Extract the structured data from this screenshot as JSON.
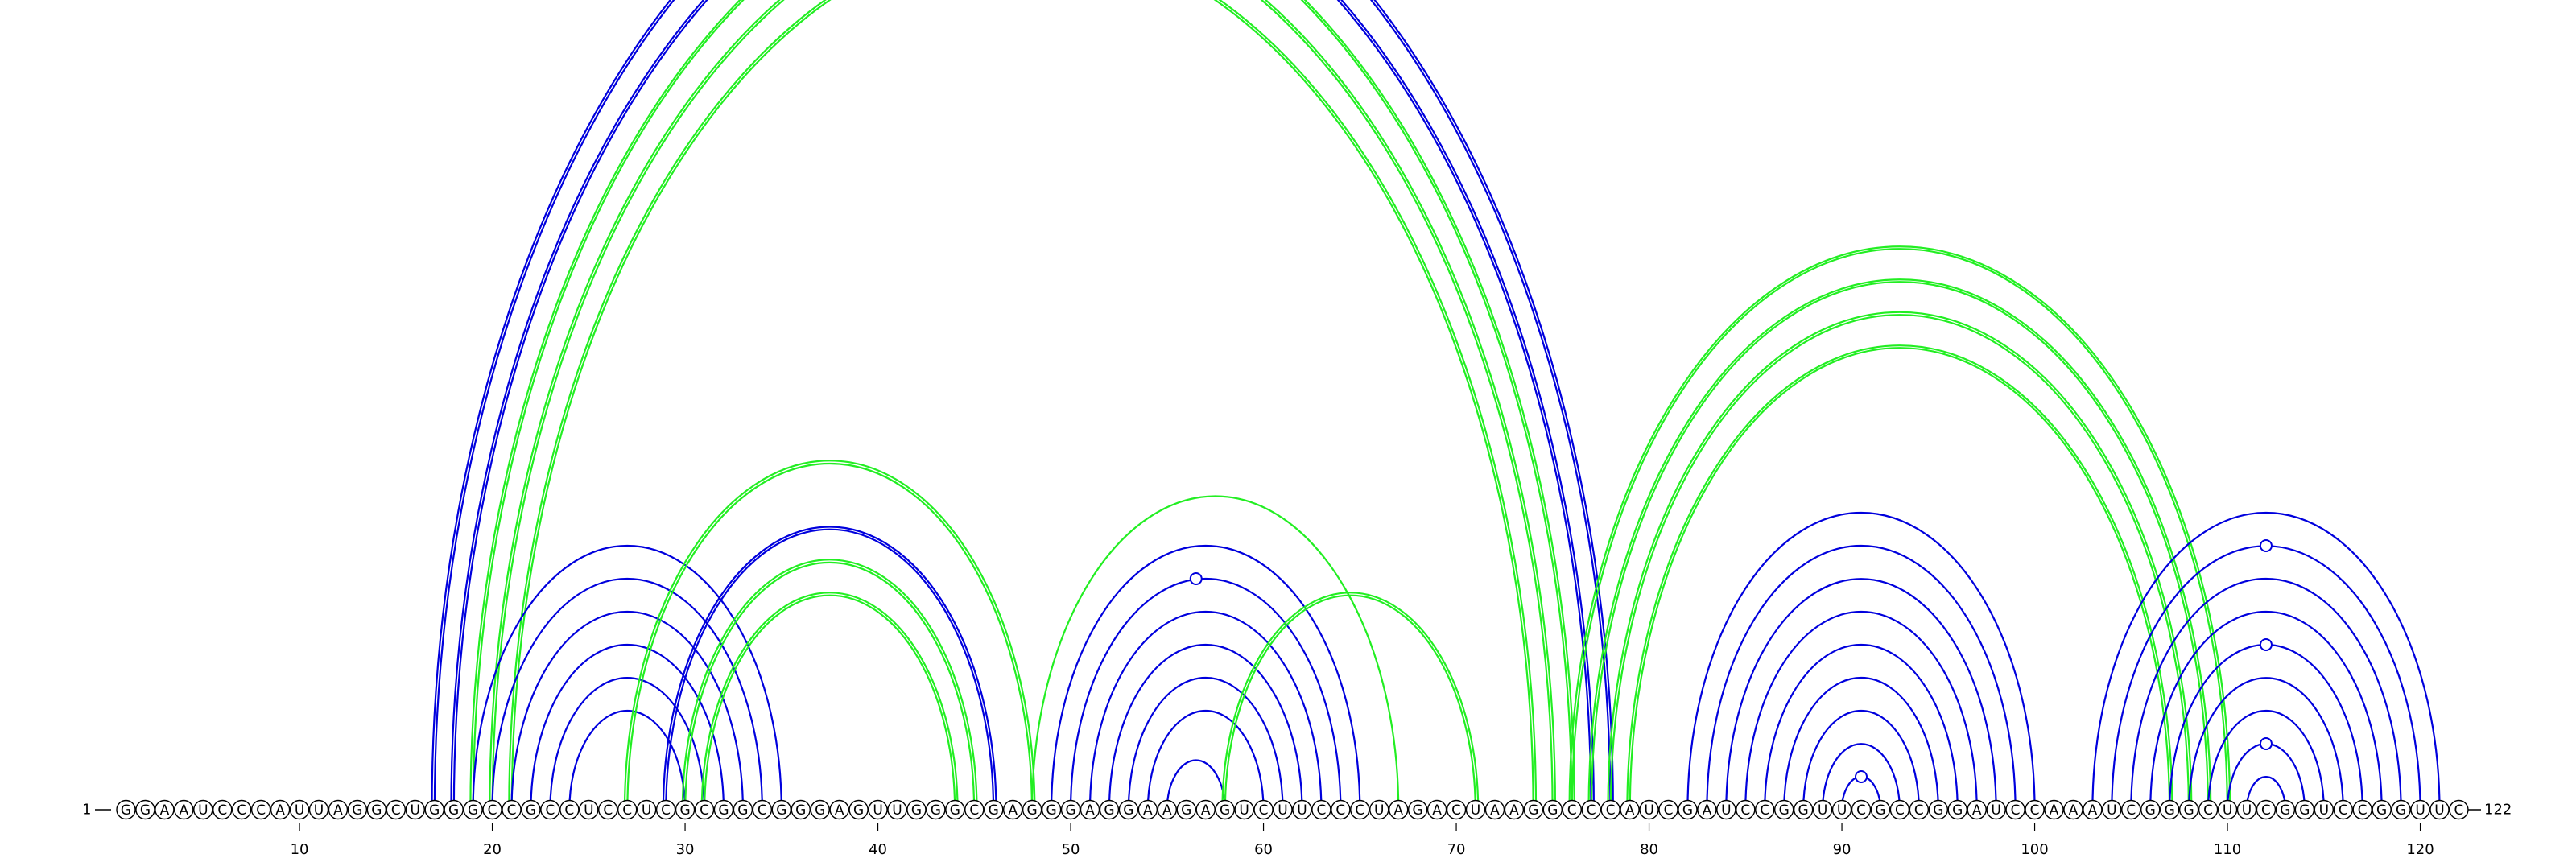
{
  "sequence": "GGAAUCCCAUUAGGCUGGGCCGCCUCCUCGCGGCGGGAGUUGGGCGAGGGAGGAAGAGUCUUCCCUAGACUAAGGCCCAUCGAUCCGGUUCGCCGGAUCCAAAUCGGGCUUCGGUCCGGUUC",
  "start_label": "1",
  "end_label": "122",
  "tick_labels": [
    "10",
    "20",
    "30",
    "40",
    "50",
    "60",
    "70",
    "80",
    "90",
    "100",
    "110",
    "120"
  ],
  "colors": {
    "blue": "#0000dd",
    "green": "#22ee22"
  },
  "chart_data": {
    "type": "arc-diagram",
    "sequence_length": 122,
    "ticks": [
      10,
      20,
      30,
      40,
      50,
      60,
      70,
      80,
      90,
      100,
      110,
      120
    ],
    "pairs": [
      {
        "i": 17,
        "j": 78,
        "color": "blue",
        "style": "double"
      },
      {
        "i": 18,
        "j": 77,
        "color": "blue",
        "style": "double"
      },
      {
        "i": 19,
        "j": 76,
        "color": "green",
        "style": "double"
      },
      {
        "i": 20,
        "j": 75,
        "color": "green",
        "style": "double"
      },
      {
        "i": 21,
        "j": 74,
        "color": "green",
        "style": "double"
      },
      {
        "i": 19,
        "j": 35,
        "color": "blue",
        "style": "single"
      },
      {
        "i": 20,
        "j": 34,
        "color": "blue",
        "style": "single"
      },
      {
        "i": 21,
        "j": 33,
        "color": "blue",
        "style": "single"
      },
      {
        "i": 22,
        "j": 32,
        "color": "blue",
        "style": "single"
      },
      {
        "i": 23,
        "j": 31,
        "color": "blue",
        "style": "single"
      },
      {
        "i": 24,
        "j": 30,
        "color": "blue",
        "style": "single"
      },
      {
        "i": 27,
        "j": 48,
        "color": "green",
        "style": "double"
      },
      {
        "i": 29,
        "j": 46,
        "color": "blue",
        "style": "double"
      },
      {
        "i": 30,
        "j": 45,
        "color": "green",
        "style": "double"
      },
      {
        "i": 31,
        "j": 44,
        "color": "green",
        "style": "double"
      },
      {
        "i": 48,
        "j": 67,
        "color": "green",
        "style": "single"
      },
      {
        "i": 49,
        "j": 65,
        "color": "blue",
        "style": "single"
      },
      {
        "i": 50,
        "j": 64,
        "color": "blue",
        "style": "single"
      },
      {
        "i": 51,
        "j": 63,
        "color": "blue",
        "style": "single"
      },
      {
        "i": 52,
        "j": 62,
        "color": "blue",
        "style": "single"
      },
      {
        "i": 53,
        "j": 61,
        "color": "blue",
        "style": "single"
      },
      {
        "i": 54,
        "j": 60,
        "color": "blue",
        "style": "single"
      },
      {
        "i": 55,
        "j": 58,
        "color": "blue",
        "style": "single"
      },
      {
        "i": 58,
        "j": 71,
        "color": "green",
        "style": "double"
      },
      {
        "i": 76,
        "j": 110,
        "color": "green",
        "style": "double"
      },
      {
        "i": 77,
        "j": 109,
        "color": "green",
        "style": "double"
      },
      {
        "i": 78,
        "j": 108,
        "color": "green",
        "style": "double"
      },
      {
        "i": 79,
        "j": 107,
        "color": "green",
        "style": "double"
      },
      {
        "i": 82,
        "j": 100,
        "color": "blue",
        "style": "single"
      },
      {
        "i": 83,
        "j": 99,
        "color": "blue",
        "style": "single"
      },
      {
        "i": 84,
        "j": 98,
        "color": "blue",
        "style": "single"
      },
      {
        "i": 85,
        "j": 97,
        "color": "blue",
        "style": "single"
      },
      {
        "i": 86,
        "j": 96,
        "color": "blue",
        "style": "single"
      },
      {
        "i": 87,
        "j": 95,
        "color": "blue",
        "style": "single"
      },
      {
        "i": 88,
        "j": 94,
        "color": "blue",
        "style": "single"
      },
      {
        "i": 89,
        "j": 93,
        "color": "blue",
        "style": "single"
      },
      {
        "i": 90,
        "j": 92,
        "color": "blue",
        "style": "single"
      },
      {
        "i": 103,
        "j": 121,
        "color": "blue",
        "style": "single"
      },
      {
        "i": 104,
        "j": 120,
        "color": "blue",
        "style": "single"
      },
      {
        "i": 105,
        "j": 119,
        "color": "blue",
        "style": "single"
      },
      {
        "i": 106,
        "j": 118,
        "color": "blue",
        "style": "single"
      },
      {
        "i": 107,
        "j": 117,
        "color": "blue",
        "style": "single"
      },
      {
        "i": 108,
        "j": 116,
        "color": "blue",
        "style": "single"
      },
      {
        "i": 109,
        "j": 115,
        "color": "blue",
        "style": "single"
      },
      {
        "i": 110,
        "j": 114,
        "color": "blue",
        "style": "single"
      },
      {
        "i": 111,
        "j": 113,
        "color": "blue",
        "style": "single"
      }
    ],
    "markers": [
      {
        "pos": 56.5,
        "pair_i": 50,
        "pair_j": 64
      },
      {
        "pos": 91,
        "pair_i": 90,
        "pair_j": 92
      },
      {
        "pos": 112,
        "pair_i": 104,
        "pair_j": 120
      },
      {
        "pos": 112,
        "pair_i": 107,
        "pair_j": 117
      },
      {
        "pos": 112,
        "pair_i": 110,
        "pair_j": 114
      }
    ]
  }
}
